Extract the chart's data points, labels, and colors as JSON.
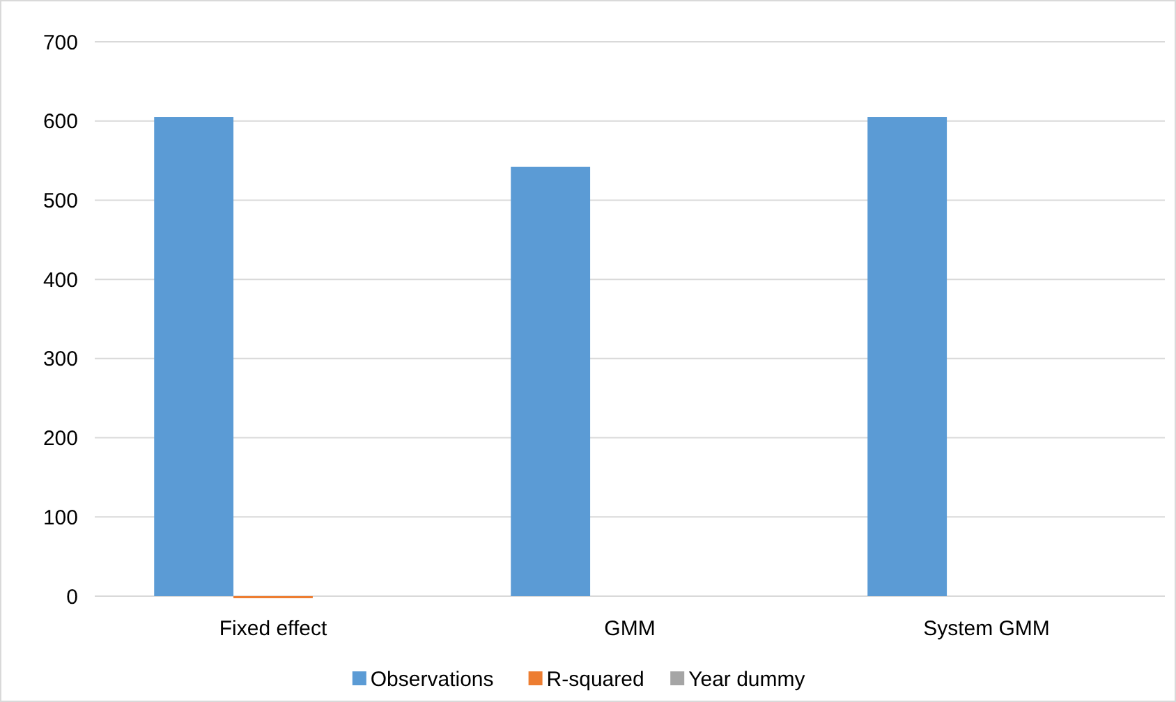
{
  "chart_data": {
    "type": "bar",
    "categories": [
      "Fixed effect",
      "GMM",
      "System GMM"
    ],
    "series": [
      {
        "name": "Observations",
        "color": "#5b9bd5",
        "values": [
          605,
          542,
          605
        ]
      },
      {
        "name": "R-squared",
        "color": "#ed7d31",
        "values": [
          0,
          null,
          null
        ]
      },
      {
        "name": "Year dummy",
        "color": "#a5a5a5",
        "values": [
          null,
          null,
          null
        ]
      }
    ],
    "ylim": [
      0,
      700
    ],
    "yticks": [
      0,
      100,
      200,
      300,
      400,
      500,
      600,
      700
    ],
    "grid": "y",
    "legend": "bottom"
  }
}
